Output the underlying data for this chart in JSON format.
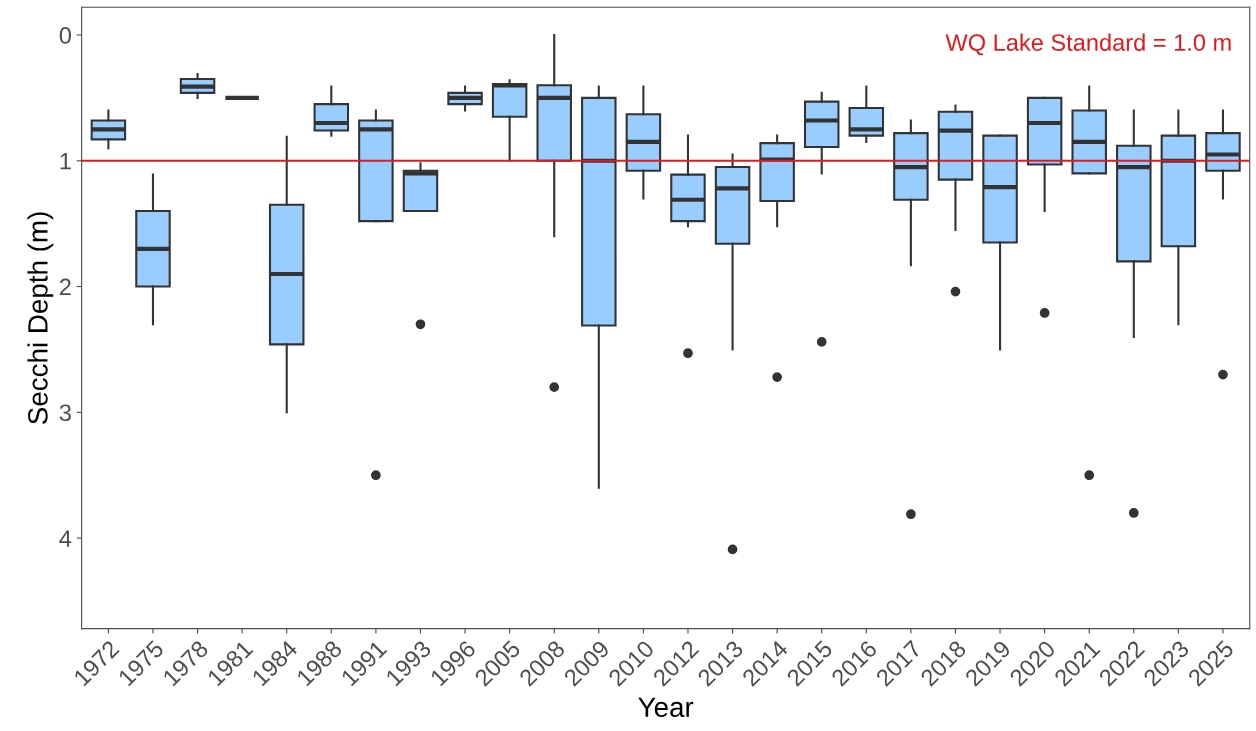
{
  "chart_data": {
    "type": "box",
    "xlabel": "Year",
    "ylabel": "Secchi Depth (m)",
    "categories": [
      "1972",
      "1975",
      "1978",
      "1981",
      "1984",
      "1988",
      "1991",
      "1993",
      "1996",
      "2005",
      "2008",
      "2009",
      "2010",
      "2012",
      "2013",
      "2014",
      "2015",
      "2016",
      "2017",
      "2018",
      "2019",
      "2020",
      "2021",
      "2022",
      "2023",
      "2025"
    ],
    "color": "#99ccff",
    "boxes": [
      {
        "low": 0.6,
        "q1": 0.68,
        "median": 0.75,
        "q3": 0.83,
        "high": 0.9
      },
      {
        "low": 1.11,
        "q1": 1.4,
        "median": 1.7,
        "q3": 2.0,
        "high": 2.3
      },
      {
        "low": 0.31,
        "q1": 0.35,
        "median": 0.41,
        "q3": 0.46,
        "high": 0.5
      },
      {
        "low": 0.5,
        "q1": 0.5,
        "median": 0.5,
        "q3": 0.5,
        "high": 0.5
      },
      {
        "low": 0.81,
        "q1": 1.35,
        "median": 1.9,
        "q3": 2.46,
        "high": 3.0
      },
      {
        "low": 0.41,
        "q1": 0.55,
        "median": 0.7,
        "q3": 0.76,
        "high": 0.8
      },
      {
        "low": 0.6,
        "q1": 0.68,
        "median": 0.75,
        "q3": 1.48,
        "high": 1.48,
        "outliers": [
          3.5
        ]
      },
      {
        "low": 1.02,
        "q1": 1.08,
        "median": 1.1,
        "q3": 1.4,
        "high": 1.4,
        "outliers": [
          2.3
        ]
      },
      {
        "low": 0.41,
        "q1": 0.46,
        "median": 0.5,
        "q3": 0.55,
        "high": 0.6
      },
      {
        "low": 0.36,
        "q1": 0.39,
        "median": 0.4,
        "q3": 0.65,
        "high": 1.0
      },
      {
        "low": 0.0,
        "q1": 0.4,
        "median": 0.5,
        "q3": 1.0,
        "high": 1.6,
        "outliers": [
          2.8
        ]
      },
      {
        "low": 0.41,
        "q1": 0.5,
        "median": 1.0,
        "q3": 2.31,
        "high": 3.6
      },
      {
        "low": 0.41,
        "q1": 0.63,
        "median": 0.85,
        "q3": 1.08,
        "high": 1.3
      },
      {
        "low": 0.8,
        "q1": 1.11,
        "median": 1.31,
        "q3": 1.48,
        "high": 1.52,
        "outliers": [
          2.53
        ]
      },
      {
        "low": 0.95,
        "q1": 1.05,
        "median": 1.22,
        "q3": 1.66,
        "high": 2.5,
        "outliers": [
          4.09
        ]
      },
      {
        "low": 0.8,
        "q1": 0.86,
        "median": 0.99,
        "q3": 1.32,
        "high": 1.52,
        "outliers": [
          2.72
        ]
      },
      {
        "low": 0.46,
        "q1": 0.53,
        "median": 0.68,
        "q3": 0.89,
        "high": 1.1,
        "outliers": [
          2.44
        ]
      },
      {
        "low": 0.41,
        "q1": 0.58,
        "median": 0.75,
        "q3": 0.8,
        "high": 0.85
      },
      {
        "low": 0.68,
        "q1": 0.78,
        "median": 1.05,
        "q3": 1.31,
        "high": 1.83,
        "outliers": [
          3.81
        ]
      },
      {
        "low": 0.56,
        "q1": 0.61,
        "median": 0.76,
        "q3": 1.15,
        "high": 1.55,
        "outliers": [
          2.04
        ]
      },
      {
        "low": 0.8,
        "q1": 0.8,
        "median": 1.21,
        "q3": 1.65,
        "high": 2.5
      },
      {
        "low": 0.5,
        "q1": 0.5,
        "median": 0.7,
        "q3": 1.03,
        "high": 1.4,
        "outliers": [
          2.21
        ]
      },
      {
        "low": 0.41,
        "q1": 0.6,
        "median": 0.85,
        "q3": 1.1,
        "high": 1.1,
        "outliers": [
          3.5
        ]
      },
      {
        "low": 0.6,
        "q1": 0.88,
        "median": 1.05,
        "q3": 1.8,
        "high": 2.4,
        "outliers": [
          3.8
        ]
      },
      {
        "low": 0.6,
        "q1": 0.8,
        "median": 1.0,
        "q3": 1.68,
        "high": 2.3
      },
      {
        "low": 0.6,
        "q1": 0.78,
        "median": 0.95,
        "q3": 1.08,
        "high": 1.3,
        "outliers": [
          2.7
        ]
      }
    ],
    "ylim": [
      4.72,
      -0.22
    ],
    "yticks": [
      0,
      1,
      2,
      3,
      4
    ],
    "ref_lines": [
      {
        "axis": "y",
        "value": 1.0,
        "label": "WQ Lake Standard = 1.0 m",
        "color": "#e31a1c"
      }
    ],
    "grid": false,
    "legend": false
  }
}
